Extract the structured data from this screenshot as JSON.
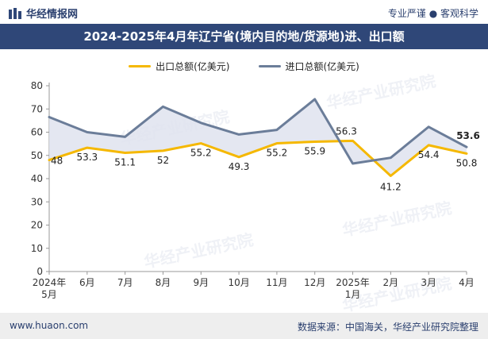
{
  "header": {
    "brand": "华经情报网",
    "slogan": "专业严谨 ● 客观科学"
  },
  "footer": {
    "website": "www.huaon.com",
    "source": "数据来源：中国海关，华经产业研究院整理"
  },
  "watermarks": [
    "华经产业研究院",
    "www.huaon.com"
  ],
  "colors": {
    "export": "#f5b800",
    "import": "#6b7d99",
    "fill": "#dfe3ee",
    "title_bg": "#2f4778"
  },
  "chart_data": {
    "type": "line",
    "title": "2024-2025年4月年辽宁省(境内目的地/货源地)进、出口额",
    "categories": [
      [
        "2024年",
        "5月"
      ],
      [
        "6月"
      ],
      [
        "7月"
      ],
      [
        "8月"
      ],
      [
        "9月"
      ],
      [
        "10月"
      ],
      [
        "11月"
      ],
      [
        "12月"
      ],
      [
        "2025年",
        "1月"
      ],
      [
        "2月"
      ],
      [
        "3月"
      ],
      [
        "4月"
      ]
    ],
    "ylim": [
      0,
      80
    ],
    "yticks": [
      0,
      10,
      20,
      30,
      40,
      50,
      60,
      70,
      80
    ],
    "legend_position": "top-center",
    "series": [
      {
        "name": "出口总额(亿美元)",
        "color": "#f5b800",
        "values": [
          48,
          53.3,
          51.1,
          52,
          55.2,
          49.3,
          55.2,
          55.9,
          56.3,
          41.2,
          54.4,
          50.8
        ],
        "labels": [
          "48",
          "53.3",
          "51.1",
          "52",
          "55.2",
          "49.3",
          "55.2",
          "55.9",
          "56.3",
          "41.2",
          "54.4",
          "50.8"
        ]
      },
      {
        "name": "进口总额(亿美元)",
        "color": "#6b7d99",
        "values": [
          66.5,
          60,
          58,
          71,
          64,
          59,
          61,
          74.2,
          46.5,
          49,
          62.3,
          53.6
        ],
        "labels": [
          "",
          "",
          "",
          "",
          "",
          "",
          "",
          "",
          "",
          "",
          "",
          "53.6"
        ]
      }
    ]
  }
}
